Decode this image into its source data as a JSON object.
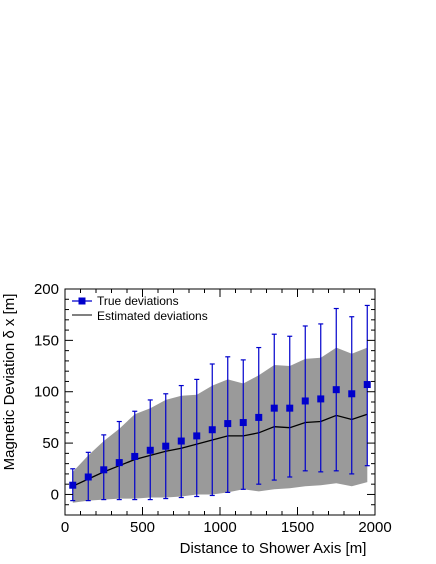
{
  "chart_data": {
    "type": "scatter",
    "xlabel": "Distance to Shower Axis [m]",
    "ylabel": "Magnetic Deviation  δ x [m]",
    "xlim": [
      0,
      2000
    ],
    "ylim": [
      -20,
      200
    ],
    "x_ticks": [
      0,
      500,
      1000,
      1500,
      2000
    ],
    "y_ticks": [
      0,
      50,
      100,
      150,
      200
    ],
    "x_tick_labels": [
      "0",
      "500",
      "1000",
      "1500",
      "2000"
    ],
    "y_tick_labels": [
      "0",
      "50",
      "100",
      "150",
      "200"
    ],
    "legend": {
      "placement": "top-left",
      "entries": [
        "True deviations",
        "Estimated deviations"
      ]
    },
    "colors": {
      "points": "#0000cc",
      "line": "#000000",
      "band": "#9a9a9a"
    },
    "x": [
      50,
      150,
      250,
      350,
      450,
      550,
      650,
      750,
      850,
      950,
      1050,
      1150,
      1250,
      1350,
      1450,
      1550,
      1650,
      1750,
      1850,
      1950
    ],
    "series": [
      {
        "name": "True deviations",
        "kind": "points_with_error_bars",
        "values": [
          9,
          17,
          24,
          31,
          37,
          43,
          47,
          52,
          57,
          63,
          69,
          70,
          75,
          84,
          84,
          91,
          93,
          102,
          98,
          107
        ],
        "err_low": [
          -6,
          -6,
          -5,
          -5,
          -5,
          -5,
          -4,
          -3,
          -2,
          -1,
          2,
          5,
          10,
          14,
          17,
          23,
          22,
          23,
          20,
          28
        ],
        "err_high": [
          25,
          41,
          58,
          71,
          81,
          92,
          98,
          106,
          112,
          127,
          134,
          131,
          143,
          156,
          154,
          164,
          166,
          181,
          173,
          184
        ]
      },
      {
        "name": "Estimated deviations",
        "kind": "line_with_band",
        "values": [
          8,
          15,
          22,
          28,
          34,
          38,
          42,
          45,
          49,
          53,
          57,
          57,
          60,
          66,
          65,
          70,
          71,
          77,
          73,
          78
        ],
        "band_low": [
          -8,
          -6,
          -5,
          -4,
          -4,
          -3,
          -3,
          -2,
          0,
          0,
          2,
          5,
          3,
          5,
          6,
          8,
          9,
          11,
          8,
          12
        ],
        "band_high": [
          22,
          38,
          52,
          64,
          78,
          84,
          92,
          96,
          97,
          106,
          112,
          108,
          116,
          126,
          125,
          132,
          133,
          143,
          137,
          143
        ]
      }
    ]
  }
}
